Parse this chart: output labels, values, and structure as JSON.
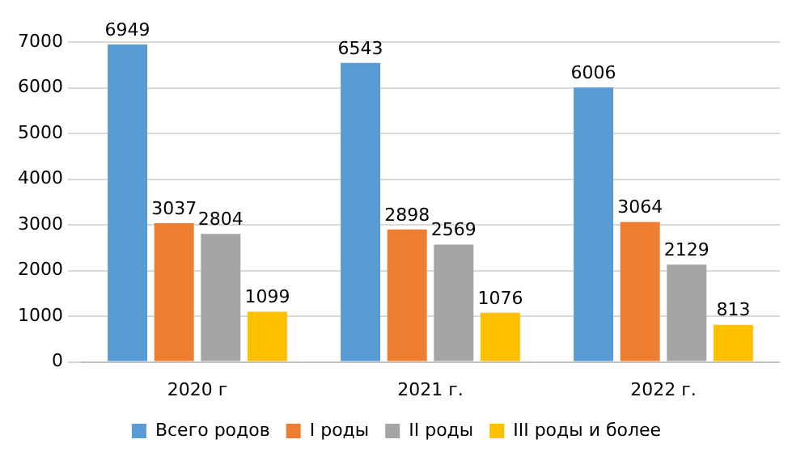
{
  "chart_data": {
    "type": "bar",
    "categories": [
      "2020 г",
      "2021 г.",
      "2022 г."
    ],
    "series": [
      {
        "name": "Всего родов",
        "color": "#5b9bd5",
        "values": [
          6949,
          6543,
          6006
        ]
      },
      {
        "name": "I роды",
        "color": "#ed7d31",
        "values": [
          3037,
          2898,
          3064
        ]
      },
      {
        "name": "II роды",
        "color": "#a5a5a5",
        "values": [
          2804,
          2569,
          2129
        ]
      },
      {
        "name": "III роды и более",
        "color": "#ffc000",
        "values": [
          1099,
          1076,
          813
        ]
      }
    ],
    "ylim": [
      0,
      7000
    ],
    "yticks": [
      0,
      1000,
      2000,
      3000,
      4000,
      5000,
      6000,
      7000
    ],
    "grid": "y",
    "legend": "bottom",
    "data_labels": true
  }
}
